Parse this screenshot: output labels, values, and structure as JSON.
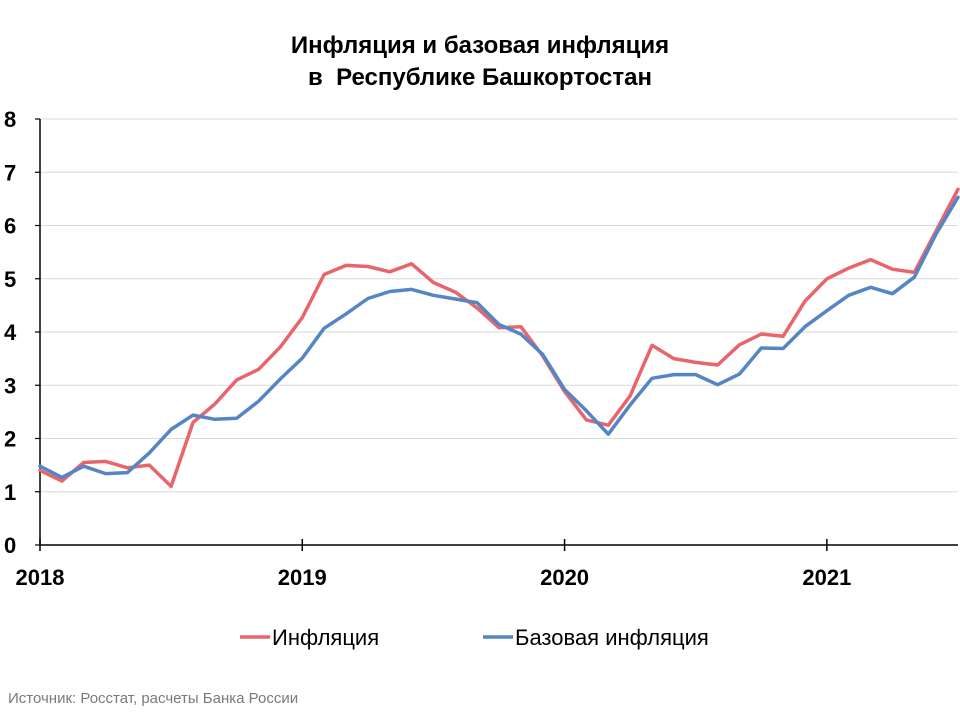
{
  "chart_data": {
    "type": "line",
    "title_line1": "Инфляция и базовая инфляция",
    "title_line2": "в  Республике Башкортостан",
    "xlabel": "",
    "ylabel": "",
    "ylim": [
      0,
      8
    ],
    "yticks": [
      "0",
      "1",
      "2",
      "3",
      "4",
      "5",
      "6",
      "7",
      "8"
    ],
    "x_ticks": [
      "2018",
      "2019",
      "2020",
      "2021"
    ],
    "x_start": "2018-01",
    "grid": "horizontal",
    "legend_position": "bottom",
    "series": [
      {
        "name": "Инфляция",
        "color": "#e8666b",
        "values": [
          1.4,
          1.2,
          1.55,
          1.57,
          1.45,
          1.5,
          1.1,
          2.3,
          2.65,
          3.1,
          3.3,
          3.72,
          4.27,
          5.08,
          5.25,
          5.23,
          5.13,
          5.28,
          4.93,
          4.75,
          4.45,
          4.08,
          4.1,
          3.55,
          2.88,
          2.35,
          2.25,
          2.8,
          3.75,
          3.5,
          3.43,
          3.38,
          3.76,
          3.96,
          3.92,
          4.58,
          5.0,
          5.2,
          5.36,
          5.18,
          5.12,
          5.9,
          6.68
        ]
      },
      {
        "name": "Базовая инфляция",
        "color": "#5585c5",
        "values": [
          1.48,
          1.27,
          1.48,
          1.34,
          1.36,
          1.73,
          2.17,
          2.44,
          2.36,
          2.38,
          2.7,
          3.12,
          3.51,
          4.07,
          4.34,
          4.63,
          4.76,
          4.8,
          4.69,
          4.62,
          4.55,
          4.14,
          3.96,
          3.58,
          2.92,
          2.52,
          2.08,
          2.63,
          3.13,
          3.2,
          3.2,
          3.01,
          3.21,
          3.7,
          3.69,
          4.1,
          4.4,
          4.69,
          4.84,
          4.72,
          5.03,
          5.84,
          6.53
        ]
      }
    ]
  },
  "source_note": "Источник: Росстат, расчеты Банка России"
}
